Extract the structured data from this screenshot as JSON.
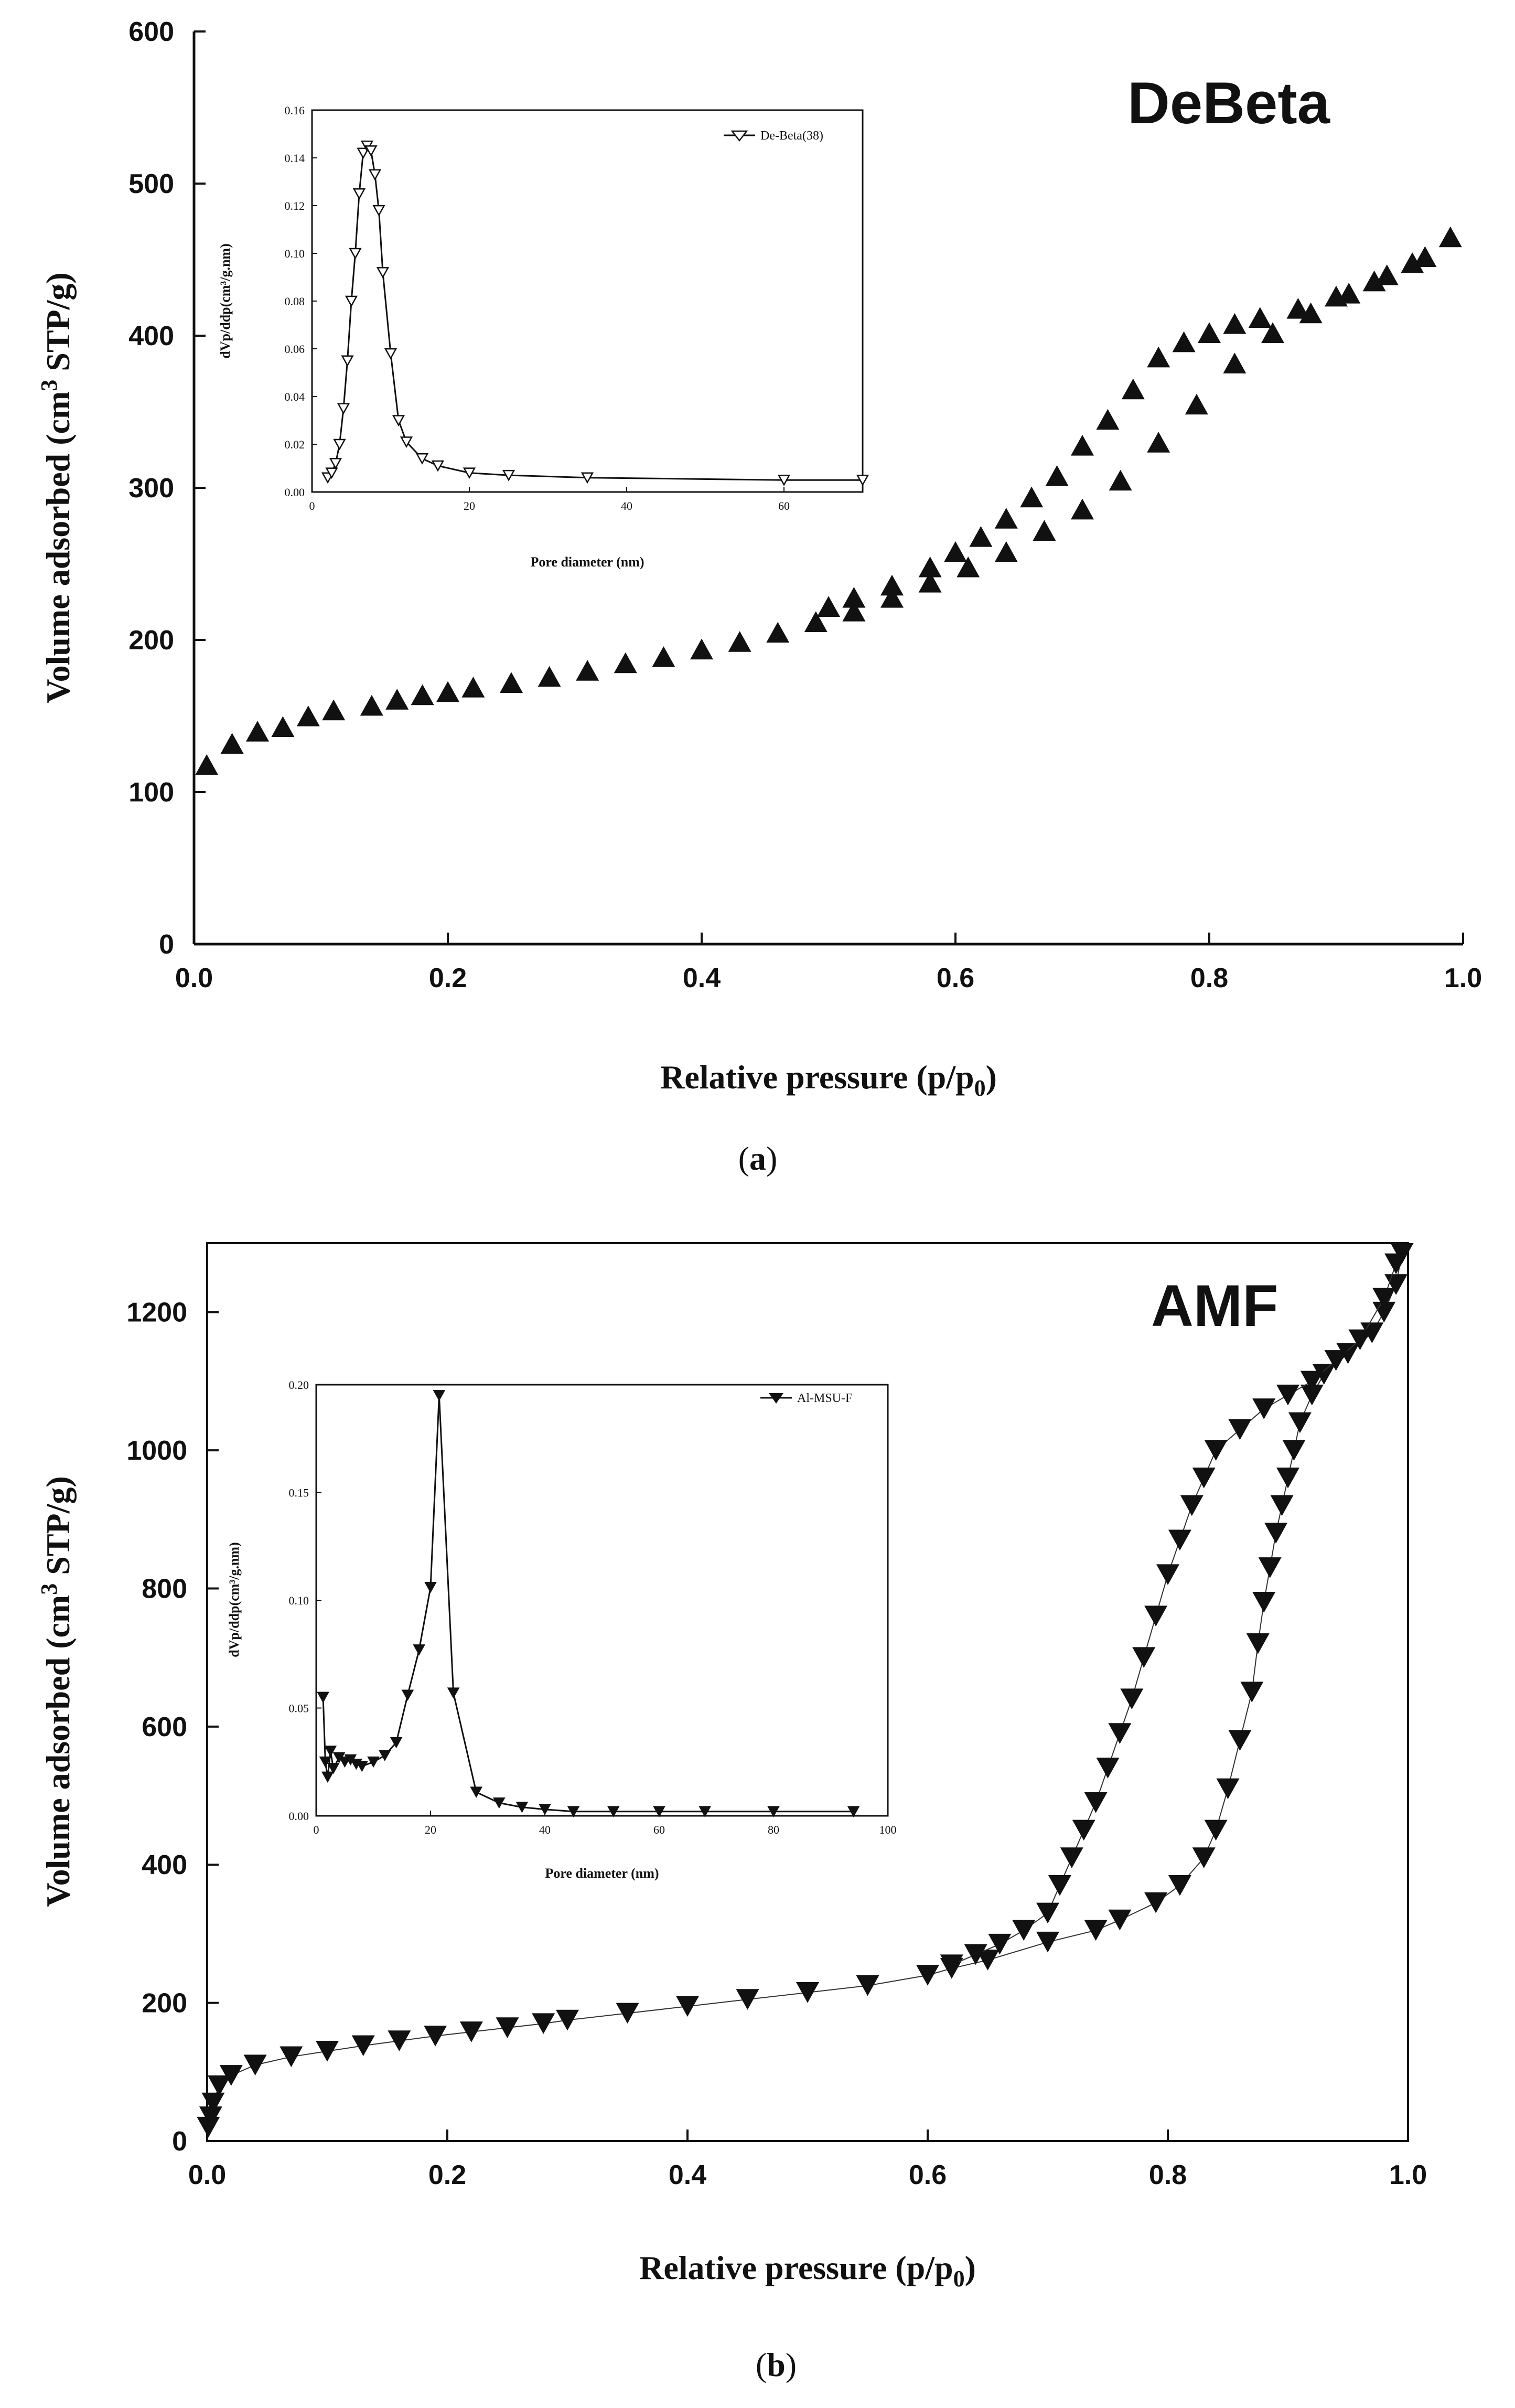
{
  "chart_data": [
    {
      "id": "a",
      "type": "scatter",
      "caption_letter": "a",
      "panel_label": "DeBeta",
      "xlabel": "Relative pressure",
      "xlabel_paren": "(p/p",
      "xlabel_sub": "0",
      "ylabel_main": "Volume adsorbed  (cm",
      "ylabel_sup": "3",
      "ylabel_tail": " STP/g)",
      "xlim": [
        0.0,
        1.0
      ],
      "ylim": [
        0,
        600
      ],
      "xticks": [
        "0.0",
        "0.2",
        "0.4",
        "0.6",
        "0.8",
        "1.0"
      ],
      "yticks": [
        "0",
        "100",
        "200",
        "300",
        "400",
        "500",
        "600"
      ],
      "marker": "triangle-up-filled",
      "series": [
        {
          "name": "adsorption",
          "x": [
            0.01,
            0.03,
            0.05,
            0.07,
            0.09,
            0.11,
            0.14,
            0.16,
            0.18,
            0.2,
            0.22,
            0.25,
            0.28,
            0.31,
            0.34,
            0.37,
            0.4,
            0.43,
            0.46,
            0.49,
            0.52,
            0.55,
            0.58,
            0.61,
            0.64,
            0.67,
            0.7,
            0.73,
            0.76,
            0.79,
            0.82,
            0.85,
            0.88,
            0.91,
            0.94,
            0.97,
            0.99
          ],
          "y": [
            118,
            132,
            140,
            143,
            150,
            154,
            157,
            161,
            164,
            166,
            169,
            172,
            176,
            180,
            185,
            189,
            194,
            199,
            205,
            212,
            219,
            228,
            238,
            248,
            258,
            272,
            286,
            305,
            330,
            355,
            382,
            402,
            415,
            428,
            440,
            452,
            465
          ]
        },
        {
          "name": "desorption",
          "x": [
            0.96,
            0.93,
            0.9,
            0.87,
            0.84,
            0.82,
            0.8,
            0.78,
            0.76,
            0.74,
            0.72,
            0.7,
            0.68,
            0.66,
            0.64,
            0.62,
            0.6,
            0.58,
            0.55,
            0.52,
            0.5
          ],
          "y": [
            448,
            436,
            426,
            418,
            412,
            408,
            402,
            396,
            386,
            365,
            345,
            328,
            308,
            294,
            280,
            268,
            258,
            248,
            236,
            228,
            222
          ]
        }
      ],
      "inset": {
        "xlabel": "Pore diameter (nm)",
        "ylabel": "dVp/ddp(cm³/g.nm)",
        "legend": "De-Beta(38)",
        "xlim": [
          0,
          70
        ],
        "ylim": [
          0,
          0.16
        ],
        "xticks": [
          "0",
          "20",
          "40",
          "60"
        ],
        "yticks": [
          "0.00",
          "0.02",
          "0.04",
          "0.06",
          "0.08",
          "0.10",
          "0.12",
          "0.14",
          "0.16"
        ],
        "x": [
          2,
          2.5,
          3,
          3.5,
          4,
          4.5,
          5,
          5.5,
          6,
          6.5,
          7,
          7.5,
          8,
          8.5,
          9,
          10,
          11,
          12,
          14,
          16,
          20,
          25,
          35,
          60,
          70
        ],
        "y": [
          0.006,
          0.008,
          0.012,
          0.02,
          0.035,
          0.055,
          0.08,
          0.1,
          0.125,
          0.142,
          0.145,
          0.143,
          0.133,
          0.118,
          0.092,
          0.058,
          0.03,
          0.021,
          0.014,
          0.011,
          0.008,
          0.007,
          0.006,
          0.005,
          0.005
        ]
      }
    },
    {
      "id": "b",
      "type": "scatter",
      "caption_letter": "b",
      "panel_label": "AMF",
      "xlabel": "Relative pressure",
      "xlabel_paren": "(p/p",
      "xlabel_sub": "0",
      "ylabel_main": "Volume adsorbed  (cm",
      "ylabel_sup": "3",
      "ylabel_tail": " STP/g)",
      "xlim": [
        0.0,
        1.0
      ],
      "ylim": [
        0,
        1300
      ],
      "xticks": [
        "0.0",
        "0.2",
        "0.4",
        "0.6",
        "0.8",
        "1.0"
      ],
      "yticks": [
        "0",
        "200",
        "400",
        "600",
        "800",
        "1000",
        "1200"
      ],
      "marker": "triangle-down-filled",
      "series": [
        {
          "name": "adsorption",
          "x": [
            0.001,
            0.003,
            0.005,
            0.01,
            0.02,
            0.04,
            0.07,
            0.1,
            0.13,
            0.16,
            0.19,
            0.22,
            0.25,
            0.28,
            0.3,
            0.35,
            0.4,
            0.45,
            0.5,
            0.55,
            0.6,
            0.62,
            0.65,
            0.7,
            0.74,
            0.76,
            0.79,
            0.81,
            0.83,
            0.84,
            0.85,
            0.86,
            0.87,
            0.875,
            0.88,
            0.885,
            0.89,
            0.895,
            0.9,
            0.905,
            0.91,
            0.92,
            0.93,
            0.95,
            0.97,
            0.98,
            0.99,
            0.995
          ],
          "y": [
            20,
            35,
            55,
            80,
            95,
            110,
            122,
            130,
            138,
            145,
            152,
            158,
            164,
            170,
            175,
            185,
            195,
            205,
            215,
            225,
            240,
            250,
            262,
            288,
            305,
            320,
            345,
            370,
            410,
            450,
            510,
            580,
            650,
            720,
            780,
            830,
            880,
            920,
            960,
            1000,
            1040,
            1080,
            1110,
            1140,
            1170,
            1200,
            1240,
            1285
          ]
        },
        {
          "name": "desorption",
          "x": [
            0.99,
            0.98,
            0.96,
            0.94,
            0.92,
            0.9,
            0.88,
            0.86,
            0.84,
            0.83,
            0.82,
            0.81,
            0.8,
            0.79,
            0.78,
            0.77,
            0.76,
            0.75,
            0.74,
            0.73,
            0.72,
            0.71,
            0.7,
            0.68,
            0.66,
            0.64,
            0.62
          ],
          "y": [
            1270,
            1220,
            1160,
            1130,
            1100,
            1080,
            1060,
            1030,
            1000,
            960,
            920,
            870,
            820,
            760,
            700,
            640,
            590,
            540,
            490,
            450,
            410,
            370,
            330,
            305,
            285,
            270,
            255
          ]
        }
      ],
      "inset": {
        "xlabel": "Pore diameter (nm)",
        "ylabel": "dVp/ddp(cm³/g.nm)",
        "legend": "Al-MSU-F",
        "xlim": [
          0,
          100
        ],
        "ylim": [
          0,
          0.2
        ],
        "xticks": [
          "0",
          "20",
          "40",
          "60",
          "80",
          "100"
        ],
        "yticks": [
          "0.00",
          "0.05",
          "0.10",
          "0.15",
          "0.20"
        ],
        "x": [
          1.2,
          1.6,
          2,
          2.5,
          3,
          4,
          5,
          6,
          7,
          8,
          10,
          12,
          14,
          16,
          18,
          20,
          21.5,
          24,
          28,
          32,
          36,
          40,
          45,
          52,
          60,
          68,
          80,
          94
        ],
        "y": [
          0.055,
          0.025,
          0.018,
          0.03,
          0.022,
          0.027,
          0.025,
          0.026,
          0.024,
          0.023,
          0.025,
          0.028,
          0.034,
          0.056,
          0.077,
          0.106,
          0.195,
          0.057,
          0.011,
          0.006,
          0.004,
          0.003,
          0.002,
          0.002,
          0.002,
          0.002,
          0.002,
          0.002
        ]
      }
    }
  ]
}
